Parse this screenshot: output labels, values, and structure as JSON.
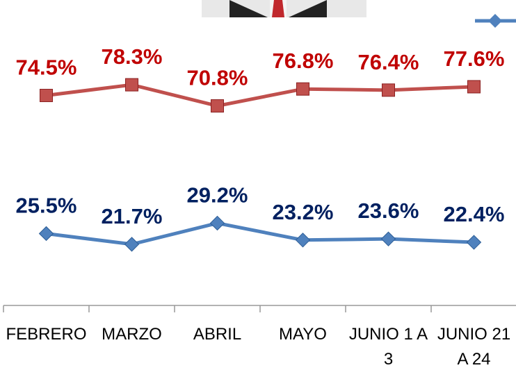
{
  "chart_data": {
    "type": "line",
    "categories": [
      "FEBRERO",
      "MARZO",
      "ABRIL",
      "MAYO",
      "JUNIO 1 A 3",
      "JUNIO 21 A 24"
    ],
    "series": [
      {
        "color": "#c0504d",
        "label_color": "#c00000",
        "marker": "square",
        "values": [
          74.5,
          78.3,
          70.8,
          76.8,
          76.4,
          77.6
        ],
        "value_labels": [
          "74.5%",
          "78.3%",
          "70.8%",
          "76.8%",
          "76.4%",
          "77.6%"
        ]
      },
      {
        "color": "#4f81bd",
        "label_color": "#002060",
        "marker": "diamond",
        "values": [
          25.5,
          21.7,
          29.2,
          23.2,
          23.6,
          22.4
        ],
        "value_labels": [
          "25.5%",
          "21.7%",
          "29.2%",
          "23.2%",
          "23.6%",
          "22.4%"
        ]
      }
    ]
  }
}
